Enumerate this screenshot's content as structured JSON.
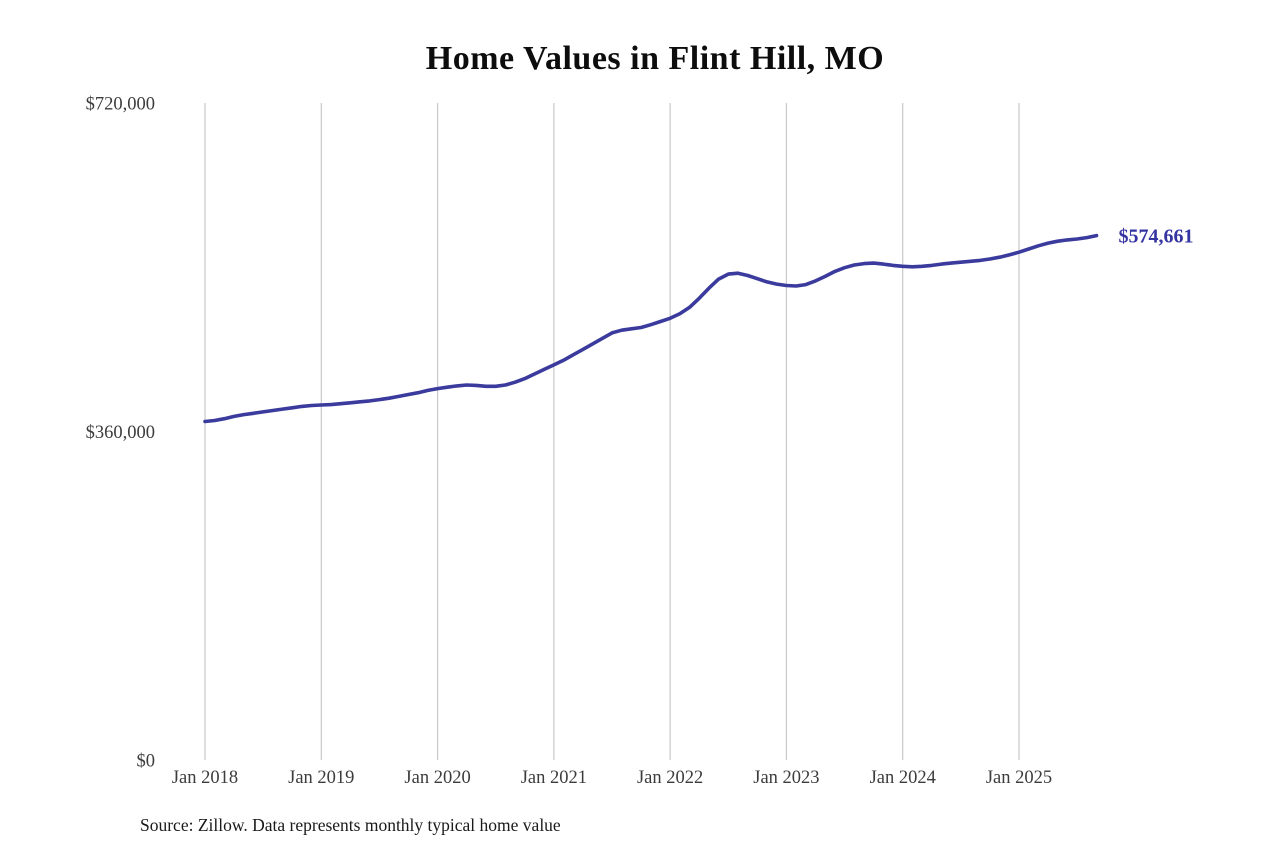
{
  "title": "Home Values in Flint Hill, MO",
  "source_note": "Source: Zillow. Data represents monthly typical home value",
  "end_label": "$574,661",
  "colors": {
    "line": "#3b3b9e",
    "end_label": "#3434a2",
    "grid": "#c8c8c8",
    "axis_text": "#3c3c3c",
    "title_text": "#0d0d0d"
  },
  "chart_data": {
    "type": "line",
    "title": "Home Values in Flint Hill, MO",
    "series_name": "Typical home value (monthly)",
    "frequency": "monthly",
    "x_start": "2018-01",
    "x_end": "2025-09",
    "x_tick_labels": [
      "Jan 2018",
      "Jan 2019",
      "Jan 2020",
      "Jan 2021",
      "Jan 2022",
      "Jan 2023",
      "Jan 2024",
      "Jan 2025"
    ],
    "y_ticks": [
      0,
      360000,
      720000
    ],
    "y_tick_labels": [
      "$0",
      "$360,000",
      "$720,000"
    ],
    "ylim": [
      0,
      720000
    ],
    "grid": "vertical-only",
    "legend": "none",
    "latest_value": 574661,
    "values": [
      371000,
      372000,
      374000,
      376500,
      378500,
      380000,
      381500,
      383000,
      384500,
      386000,
      387500,
      388500,
      389000,
      389500,
      390500,
      391500,
      392500,
      393500,
      395000,
      396500,
      398500,
      400500,
      402500,
      405000,
      407000,
      408500,
      410000,
      411000,
      410500,
      409500,
      409500,
      411000,
      414000,
      418000,
      423000,
      428000,
      433000,
      438000,
      444000,
      450000,
      456000,
      462000,
      468000,
      471000,
      472500,
      474000,
      477000,
      480500,
      484000,
      489000,
      496000,
      506000,
      517000,
      527000,
      532500,
      533500,
      531000,
      527500,
      524000,
      521500,
      520000,
      519500,
      521000,
      525000,
      530000,
      535500,
      539500,
      542500,
      544000,
      544500,
      543500,
      542000,
      541000,
      540500,
      541000,
      542000,
      543500,
      544500,
      545500,
      546500,
      547500,
      549000,
      551000,
      553500,
      556500,
      560000,
      563500,
      566500,
      568500,
      570000,
      571000,
      572500,
      574661
    ]
  }
}
